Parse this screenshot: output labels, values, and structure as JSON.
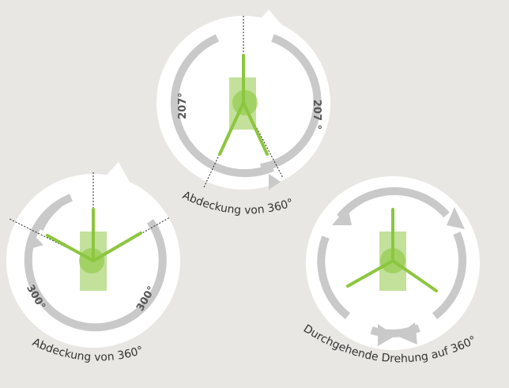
{
  "diagrams": [
    {
      "left_label": "207°",
      "right_label": "207 °",
      "caption": "Abdeckung von 360°"
    },
    {
      "left_label": "300°",
      "right_label": "300°",
      "caption": "Abdeckung von 360°"
    },
    {
      "caption": "Durchgehende Drehung auf 360°"
    }
  ]
}
